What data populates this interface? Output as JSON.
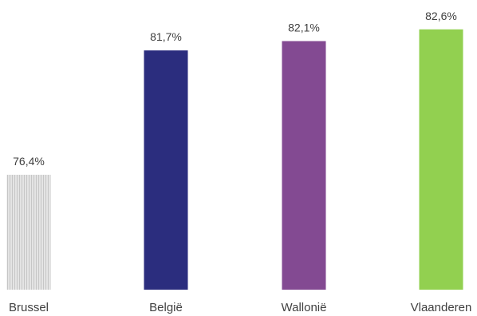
{
  "chart_data": {
    "type": "bar",
    "title": "",
    "xlabel": "",
    "ylabel": "",
    "categories": [
      "Brussel",
      "België",
      "Wallonië",
      "Vlaanderen"
    ],
    "values": [
      76.4,
      81.7,
      82.1,
      82.6
    ],
    "value_labels": [
      "76,4%",
      "81,7%",
      "82,1%",
      "82,6%"
    ],
    "colors": [
      "#d4d4d4",
      "#2b2d7e",
      "#834a92",
      "#92d050"
    ],
    "bar_patterns": [
      "vertical-lines",
      "solid",
      "solid",
      "solid"
    ],
    "ylim": [
      71.5,
      83.0
    ],
    "grid": false,
    "legend": "none"
  }
}
